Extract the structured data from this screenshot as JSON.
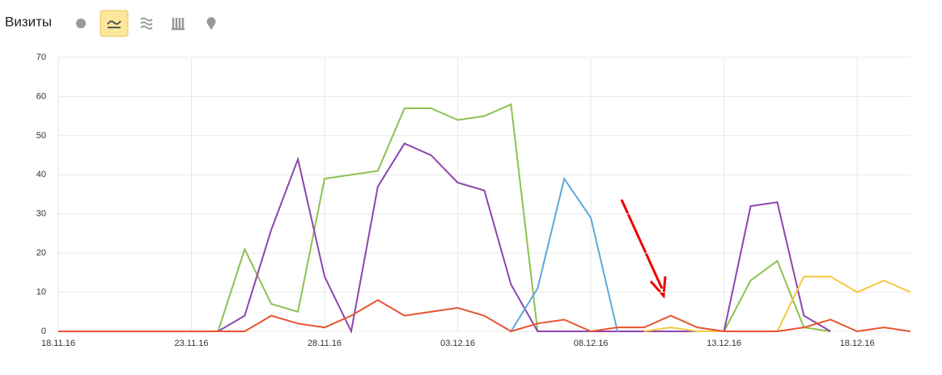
{
  "header": {
    "title": "Визиты"
  },
  "chart_data": {
    "type": "line",
    "categories": [
      "18.11.16",
      null,
      null,
      null,
      null,
      "23.11.16",
      null,
      null,
      null,
      null,
      "28.11.16",
      null,
      null,
      null,
      null,
      "03.12.16",
      null,
      null,
      null,
      null,
      "08.12.16",
      null,
      null,
      null,
      null,
      "13.12.16",
      null,
      null,
      null,
      null,
      "18.12.16",
      null,
      null
    ],
    "series": [
      {
        "color": "#8dc152",
        "values": [
          0,
          0,
          0,
          0,
          0,
          0,
          0,
          21,
          7,
          5,
          39,
          40,
          41,
          57,
          57,
          54,
          55,
          58,
          0,
          0,
          0,
          0,
          0,
          0,
          0,
          0,
          13,
          18,
          1,
          0,
          null,
          null,
          null
        ]
      },
      {
        "color": "#8e44ad",
        "values": [
          0,
          0,
          0,
          0,
          0,
          0,
          0,
          4,
          26,
          44,
          14,
          0,
          37,
          48,
          45,
          38,
          36,
          12,
          0,
          0,
          0,
          0,
          0,
          0,
          0,
          0,
          32,
          33,
          4,
          0,
          null,
          null,
          null
        ]
      },
      {
        "color": "#5ea9d8",
        "values": [
          null,
          null,
          null,
          null,
          null,
          null,
          null,
          null,
          null,
          null,
          null,
          null,
          null,
          null,
          null,
          null,
          null,
          0,
          11,
          39,
          29,
          0,
          null,
          null,
          null,
          null,
          null,
          null,
          null,
          null,
          null,
          null,
          null
        ]
      },
      {
        "color": "#f5c842",
        "values": [
          null,
          null,
          null,
          null,
          null,
          null,
          null,
          null,
          null,
          null,
          null,
          null,
          null,
          null,
          null,
          null,
          null,
          null,
          null,
          null,
          null,
          null,
          0,
          1,
          0,
          0,
          0,
          0,
          14,
          14,
          10,
          13,
          10
        ]
      },
      {
        "color": "#e8532f",
        "values": [
          0,
          0,
          0,
          0,
          0,
          0,
          0,
          0,
          4,
          2,
          1,
          4,
          8,
          4,
          5,
          6,
          4,
          0,
          2,
          3,
          0,
          1,
          1,
          4,
          1,
          0,
          0,
          0,
          1,
          3,
          0,
          1,
          0
        ]
      }
    ],
    "ylim": [
      0,
      70
    ],
    "yticks": [
      0,
      10,
      20,
      30,
      40,
      50,
      60,
      70
    ],
    "grid": true
  }
}
